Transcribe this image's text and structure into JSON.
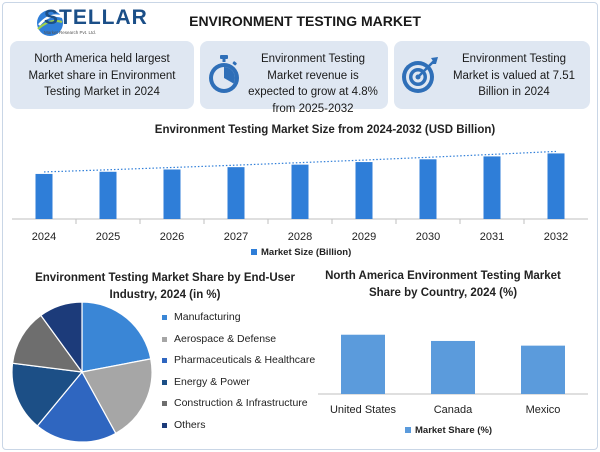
{
  "header": {
    "logo_text": "STELLAR",
    "logo_subtext": "Market Research Pvt. Ltd.",
    "title": "ENVIRONMENT TESTING MARKET"
  },
  "info_boxes": [
    {
      "text": "North America held largest Market share in Environment Testing Market in 2024"
    },
    {
      "text": "Environment Testing Market revenue is expected to grow at 4.8% from 2025-2032",
      "icon": "stopwatch-icon"
    },
    {
      "text": "Environment Testing Market is valued at 7.51 Billion in 2024",
      "icon": "target-icon"
    }
  ],
  "colors": {
    "bar": "#2f7ed8",
    "na_bar": "#5b9bdc",
    "title_blue": "#1b4f88",
    "box_bg": "#dfe7f2"
  },
  "chart_data": [
    {
      "type": "bar",
      "title": "Environment Testing Market Size from 2024-2032 (USD Billion)",
      "categories": [
        "2024",
        "2025",
        "2026",
        "2027",
        "2028",
        "2029",
        "2030",
        "2031",
        "2032"
      ],
      "series": [
        {
          "name": "Market Size (Billion)",
          "values": [
            7.51,
            7.87,
            8.25,
            8.64,
            9.06,
            9.49,
            9.95,
            10.43,
            10.93
          ]
        }
      ],
      "ylim": [
        0,
        14
      ],
      "trendline": true,
      "legend": "bottom",
      "grid": false
    },
    {
      "type": "pie",
      "title": "Environment Testing Market Share by End-User Industry, 2024 (in %)",
      "labels": [
        "Manufacturing",
        "Aerospace & Defense",
        "Pharmaceuticals & Healthcare",
        "Energy & Power",
        "Construction & Infrastructure",
        "Others"
      ],
      "values": [
        22,
        20,
        19,
        16,
        13,
        10
      ],
      "colors": [
        "#3a86d6",
        "#a6a6a6",
        "#2f66c0",
        "#1c4f86",
        "#6e6e6e",
        "#1c3b7a"
      ],
      "legend": "right"
    },
    {
      "type": "bar",
      "title": "North America Environment Testing Market Share by Country, 2024 (%)",
      "categories": [
        "United States",
        "Canada",
        "Mexico"
      ],
      "series": [
        {
          "name": "Market Share (%)",
          "values": [
            76,
            68,
            62
          ]
        }
      ],
      "ylim": [
        0,
        100
      ],
      "legend": "bottom",
      "grid": false
    }
  ]
}
